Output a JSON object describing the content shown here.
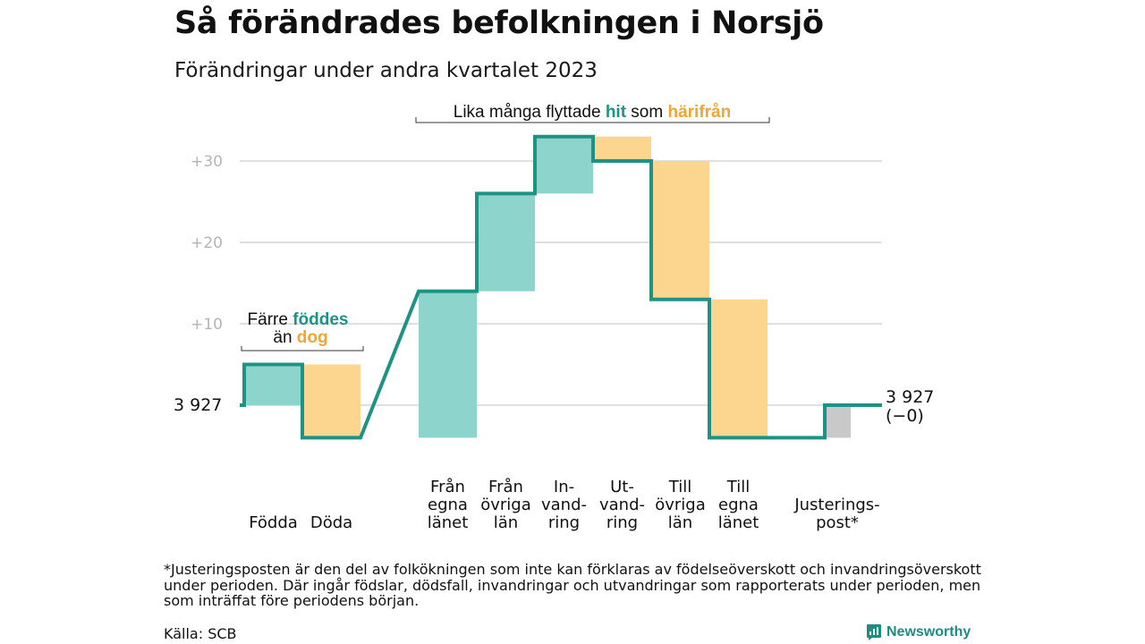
{
  "header": {
    "title": "Så förändrades befolkningen i Norsjö",
    "subtitle": "Förändringar under andra kvartalet 2023"
  },
  "colors": {
    "teal": "#1e9384",
    "teal_fill": "#8dd5cc",
    "orange_fill": "#fcd68e",
    "orange_text": "#f0a534",
    "gray_fill": "#c9c9c9",
    "grid": "#e0e0e0"
  },
  "chart_data": {
    "type": "waterfall",
    "baseline_value": 3927,
    "ylim": [
      3923,
      3960
    ],
    "yticks": [
      {
        "value": 3937,
        "label": "+10"
      },
      {
        "value": 3947,
        "label": "+20"
      },
      {
        "value": 3957,
        "label": "+30"
      }
    ],
    "start_label": "3  927",
    "end_label": [
      "3 927",
      "(−0)"
    ],
    "steps": [
      {
        "label": [
          "",
          "",
          "Födda"
        ],
        "change": 5,
        "kind": "in"
      },
      {
        "label": [
          "",
          "",
          "Döda"
        ],
        "change": -9,
        "kind": "out"
      },
      {
        "label": [
          "Från",
          "egna",
          "länet"
        ],
        "change": 18,
        "kind": "in"
      },
      {
        "label": [
          "Från",
          "övriga",
          "län"
        ],
        "change": 12,
        "kind": "in"
      },
      {
        "label": [
          "In-",
          "vand-",
          "ring"
        ],
        "change": 7,
        "kind": "in"
      },
      {
        "label": [
          "Ut-",
          "vand-",
          "ring"
        ],
        "change": -3,
        "kind": "out"
      },
      {
        "label": [
          "Till",
          "övriga",
          "län"
        ],
        "change": -17,
        "kind": "out"
      },
      {
        "label": [
          "Till",
          "egna",
          "länet"
        ],
        "change": -17,
        "kind": "out"
      },
      {
        "label": [
          "",
          "Justerings-",
          "post*"
        ],
        "change": 4,
        "kind": "adjust"
      }
    ],
    "annotations": {
      "births": {
        "line1_prefix": "Färre ",
        "line1_highlight": "föddes",
        "line2_prefix": "än ",
        "line2_highlight": "dog"
      },
      "migration": {
        "prefix": "Lika många flyttade ",
        "highlight1": "hit",
        "middle": " som ",
        "highlight2": "härifrån"
      }
    }
  },
  "footnote": "*Justeringsposten är den del av folkökningen som inte kan förklaras av födelseöverskott och invandringsöverskott under perioden. Där ingår födslar, dödsfall, invandringar och utvandringar som rapporterats under perioden, men som inträffat före periodens början.",
  "source": "Källa: SCB",
  "brand": "Newsworthy"
}
